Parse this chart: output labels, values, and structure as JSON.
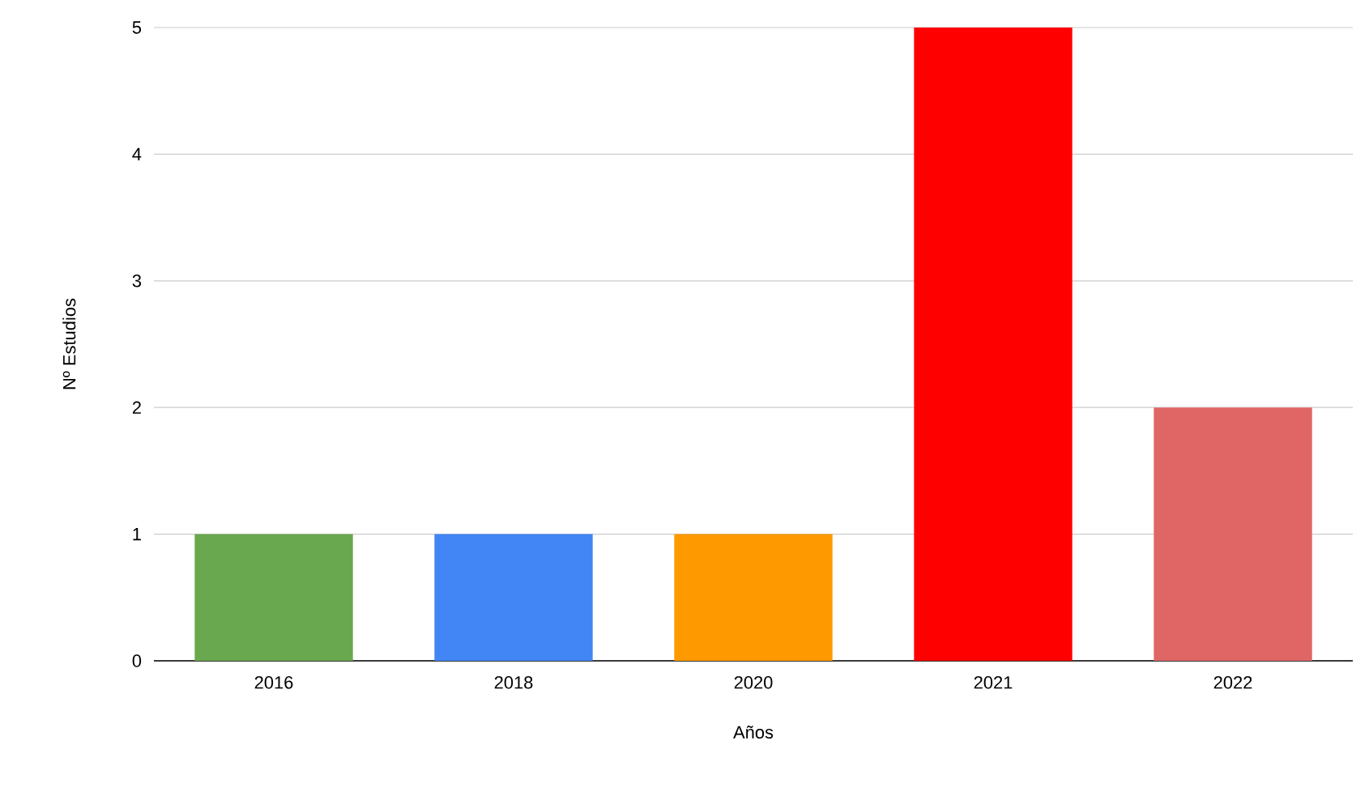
{
  "chart_data": {
    "type": "bar",
    "categories": [
      "2016",
      "2018",
      "2020",
      "2021",
      "2022"
    ],
    "values": [
      1,
      1,
      1,
      5,
      2
    ],
    "colors": [
      "#6aa84f",
      "#4285f4",
      "#ff9900",
      "#ff0000",
      "#e06666"
    ],
    "xlabel": "Años",
    "ylabel": "Nº Estudios",
    "ylim": [
      0,
      5
    ],
    "yticks": [
      0,
      1,
      2,
      3,
      4,
      5
    ],
    "grid": "y"
  }
}
